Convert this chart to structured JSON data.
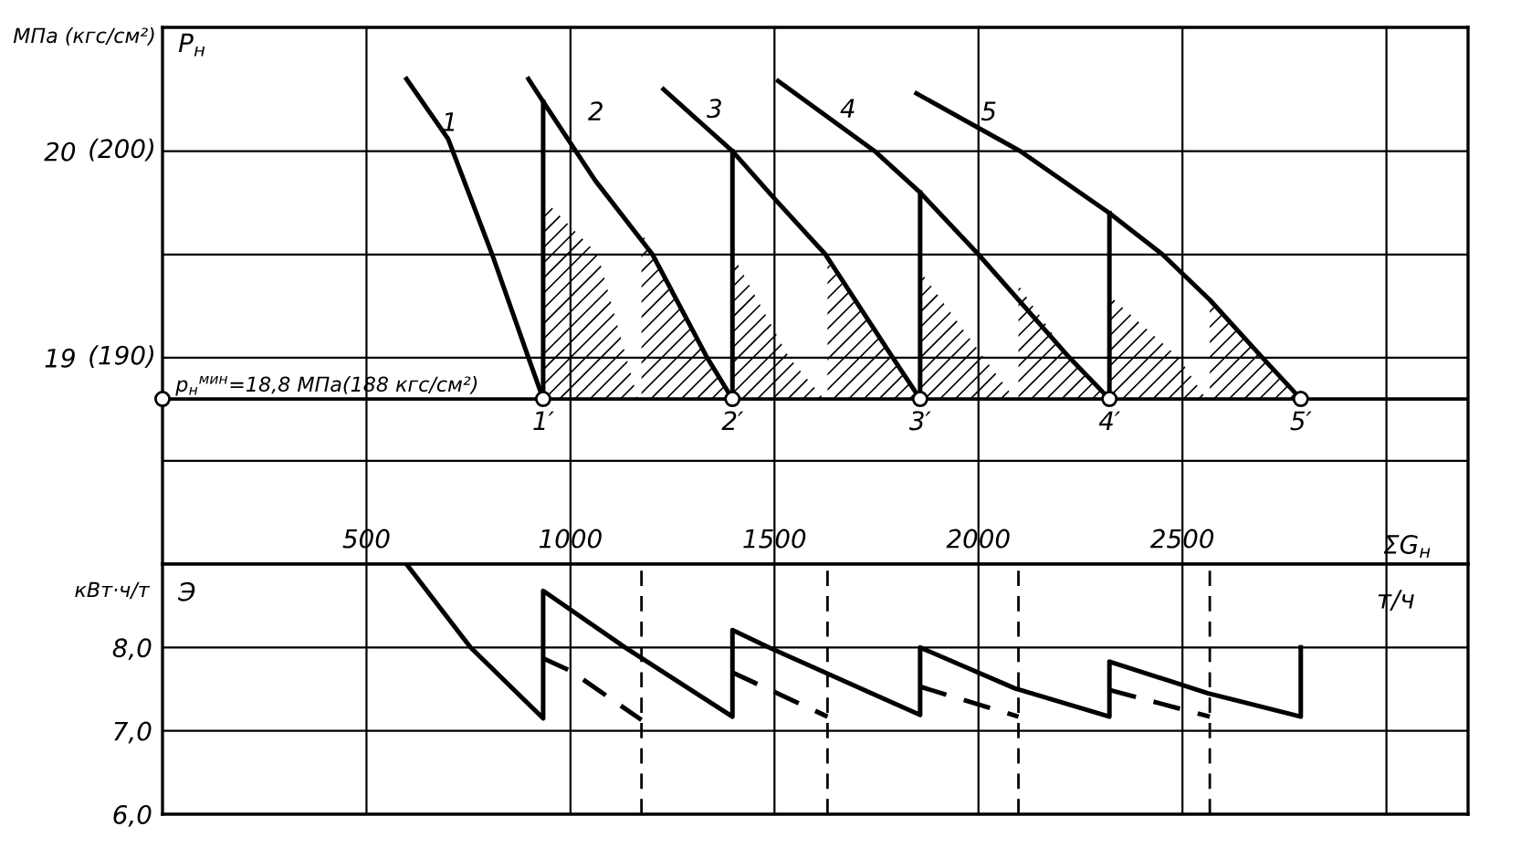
{
  "chart_data": [
    {
      "type": "line",
      "ylabel": "P$_{н}$",
      "xlim": [
        0,
        3200
      ],
      "ylim": [
        18.0,
        20.6
      ],
      "xticks": [
        500,
        1000,
        1500,
        2000,
        2500,
        {
          "value": 3000,
          "label": null
        }
      ],
      "yticks": [
        {
          "value": 18.5,
          "label": null
        },
        19,
        {
          "value": 19.5,
          "label": null
        },
        20
      ],
      "grid": true,
      "ref_lines": [
        {
          "axis": "y",
          "value": 18.8,
          "label": "p$_{н}$$^{мин}$=18,8 МПа(188 кгс/см²)"
        }
      ],
      "series": [
        {
          "color": "#000000",
          "x": [
            598,
            700,
            808,
            897,
            933
          ],
          "values": [
            20.35,
            20.06,
            19.5,
            19.0,
            18.8
          ]
        },
        {
          "color": "#000000",
          "x": [
            897,
            933,
            1060,
            1201,
            1335,
            1397
          ],
          "values": [
            20.35,
            20.24,
            19.86,
            19.5,
            19.0,
            18.8
          ]
        },
        {
          "color": "#000000",
          "x": [
            1228,
            1397,
            1500,
            1625,
            1790,
            1857
          ],
          "values": [
            20.3,
            20.0,
            19.77,
            19.5,
            19.0,
            18.8
          ]
        },
        {
          "color": "#000000",
          "x": [
            1509,
            1746,
            1857,
            2000,
            2223,
            2321
          ],
          "values": [
            20.34,
            20.0,
            19.8,
            19.5,
            19.0,
            18.8
          ]
        },
        {
          "color": "#000000",
          "x": [
            1848,
            2103,
            2321,
            2451,
            2567,
            2696,
            2790
          ],
          "values": [
            20.28,
            20.0,
            19.7,
            19.5,
            19.28,
            19.0,
            18.8
          ]
        },
        {
          "color": "#000000",
          "x": [
            933,
            933
          ],
          "values": [
            18.8,
            20.24
          ]
        },
        {
          "color": "#000000",
          "x": [
            1397,
            1397
          ],
          "values": [
            18.8,
            20.0
          ]
        },
        {
          "color": "#000000",
          "x": [
            1857,
            1857
          ],
          "values": [
            18.8,
            19.8
          ]
        },
        {
          "color": "#000000",
          "x": [
            2321,
            2321
          ],
          "values": [
            18.8,
            19.7
          ]
        },
        {
          "type": "area",
          "color": "#000000",
          "x": [
            933,
            1067,
            1165
          ],
          "values": [
            19.77,
            19.5,
            18.8
          ]
        },
        {
          "type": "area",
          "color": "#000000",
          "x": [
            1174,
            1201,
            1335,
            1397
          ],
          "values": [
            19.61,
            19.5,
            19.0,
            18.8
          ]
        },
        {
          "type": "area",
          "color": "#000000",
          "x": [
            1397,
            1536,
            1621
          ],
          "values": [
            19.5,
            19.0,
            18.8
          ]
        },
        {
          "type": "area",
          "color": "#000000",
          "x": [
            1630,
            1790,
            1857
          ],
          "values": [
            19.46,
            19.0,
            18.8
          ]
        },
        {
          "type": "area",
          "color": "#000000",
          "x": [
            1857,
            2013,
            2089
          ],
          "values": [
            19.42,
            19.0,
            18.8
          ]
        },
        {
          "type": "area",
          "color": "#000000",
          "x": [
            2098,
            2223,
            2321
          ],
          "values": [
            19.35,
            19.0,
            18.8
          ]
        },
        {
          "type": "area",
          "color": "#000000",
          "x": [
            2321,
            2491,
            2558
          ],
          "values": [
            19.3,
            19.0,
            18.8
          ]
        },
        {
          "type": "area",
          "color": "#000000",
          "x": [
            2567,
            2696,
            2790
          ],
          "values": [
            19.28,
            19.0,
            18.8
          ]
        },
        {
          "type": "scatter",
          "marker": "circle",
          "color": "#000000",
          "x": [
            0,
            933,
            1397,
            1857,
            2321,
            2790
          ],
          "values": [
            18.8,
            18.8,
            18.8,
            18.8,
            18.8,
            18.8
          ]
        }
      ],
      "annotations": [
        "МПа (кгс/см²)",
        "(200)",
        "(190)",
        "1",
        "2",
        "3",
        "4",
        "5",
        "1′",
        "2′",
        "3′",
        "4′",
        "5′"
      ]
    },
    {
      "type": "line",
      "ylabel": "Э",
      "xlabel": "ΣG$_{н}$",
      "xlim": [
        0,
        3200
      ],
      "ylim": [
        6,
        9
      ],
      "xticks": [
        500,
        1000,
        1500,
        2000,
        2500,
        {
          "value": 3000,
          "label": null
        }
      ],
      "yticks": [
        {
          "value": 6,
          "label": "6,0"
        },
        {
          "value": 7,
          "label": "7,0"
        },
        {
          "value": 8,
          "label": "8,0"
        }
      ],
      "grid": true,
      "tick_labels": "y",
      "ref_lines": [
        {
          "axis": "x",
          "value": 1174,
          "line_style": "dashed"
        },
        {
          "axis": "x",
          "value": 1630,
          "line_style": "dashed"
        },
        {
          "axis": "x",
          "value": 2098,
          "line_style": "dashed"
        },
        {
          "axis": "x",
          "value": 2567,
          "line_style": "dashed"
        }
      ],
      "series": [
        {
          "color": "#000000",
          "x": [
            598,
            755,
            933,
            933,
            1134,
            1397,
            1397,
            1486,
            1857,
            1857,
            2089,
            2321,
            2321,
            2563,
            2790,
            2790
          ],
          "values": [
            9.0,
            8.0,
            7.15,
            8.68,
            8.0,
            7.17,
            8.21,
            8.0,
            7.19,
            8.0,
            7.51,
            7.17,
            7.83,
            7.45,
            7.17,
            8.0
          ]
        },
        {
          "color": "#000000",
          "line_style": "dashed",
          "x": [
            933,
            1000,
            1174
          ],
          "values": [
            7.87,
            7.72,
            7.13
          ]
        },
        {
          "color": "#000000",
          "line_style": "dashed",
          "x": [
            1397,
            1630
          ],
          "values": [
            7.7,
            7.17
          ]
        },
        {
          "color": "#000000",
          "line_style": "dashed",
          "x": [
            1857,
            2098
          ],
          "values": [
            7.53,
            7.17
          ]
        },
        {
          "color": "#000000",
          "line_style": "dashed",
          "x": [
            2321,
            2567
          ],
          "values": [
            7.49,
            7.17
          ]
        }
      ],
      "annotations": [
        "кВт·ч/т",
        "т/ч"
      ]
    }
  ]
}
